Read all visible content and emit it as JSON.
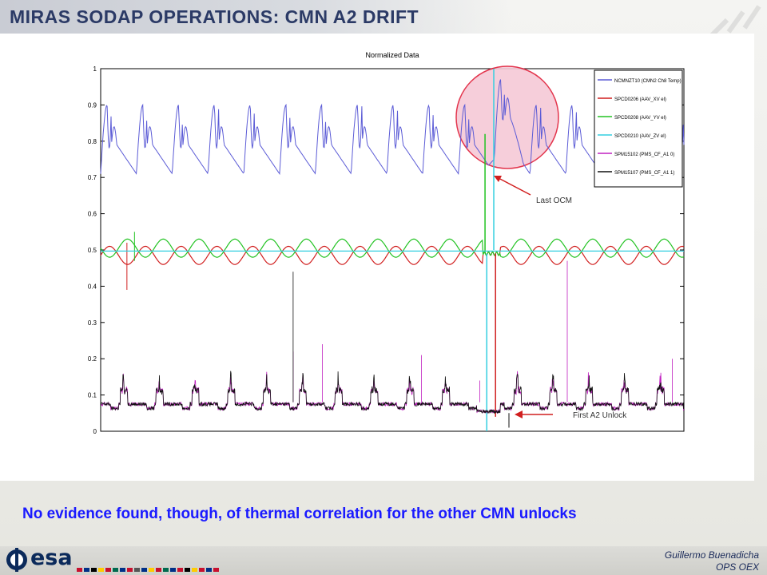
{
  "slide": {
    "title": "MIRAS SODAP OPERATIONS: CMN A2 DRIFT",
    "conclusion": "No evidence found, though, of thermal correlation for the other CMN unlocks",
    "footer": {
      "logo_text": "esa",
      "author": "Guillermo Buenadicha",
      "department": "OPS OEX"
    }
  },
  "chart_data": {
    "type": "line",
    "title": "Normalized Data",
    "xlabel": "",
    "ylabel": "",
    "ylim": [
      0,
      1
    ],
    "yticks": [
      "0",
      "0.1",
      "0.2",
      "0.3",
      "0.4",
      "0.5",
      "0.6",
      "0.7",
      "0.8",
      "0.9",
      "1"
    ],
    "grid": false,
    "legend_position": "top-right",
    "series": [
      {
        "name": "NCMNZT10 (CMN2 Ch8 Temp)",
        "color": "#5b5bd6",
        "approx_range": [
          0.71,
          0.99
        ],
        "cycles": 16
      },
      {
        "name": "SPCD0206 (AAV_XV el)",
        "color": "#d11f1f",
        "approx_range": [
          0.46,
          0.51
        ],
        "cycles": 16
      },
      {
        "name": "SPCD0208 (AAV_YV el)",
        "color": "#22c322",
        "approx_range": [
          0.48,
          0.53
        ],
        "cycles": 16
      },
      {
        "name": "SPCD0210 (AAV_ZV el)",
        "color": "#33cfe0",
        "approx_range": [
          0.49,
          0.5
        ],
        "cycles": 0
      },
      {
        "name": "SPM15102 (PMS_CF_A1 0)",
        "color": "#c020c0",
        "approx_range": [
          0.06,
          0.24
        ],
        "cycles": 16
      },
      {
        "name": "SPM15107 (PMS_CF_A1 1)",
        "color": "#111111",
        "approx_range": [
          0.06,
          0.23
        ],
        "cycles": 16
      }
    ],
    "legend_labels": [
      "NCMNZT10 (CMN2 Ch8 Temp)",
      "SPCD0206 (AAV_XV el)",
      "SPCD0208 (AAV_YV el)",
      "SPCD0210 (AAV_ZV el)",
      "SPM15102 (PMS_CF_A1 0)",
      "SPM15107 (PMS_CF_A1 1)"
    ],
    "annotations": [
      {
        "text": "Last OCM",
        "color": "#d11f1f"
      },
      {
        "text": "First A2 Unlock",
        "color": "#d11f1f"
      }
    ],
    "highlight": {
      "type": "circle",
      "fill": "#f6c9d6",
      "stroke": "#e0203a"
    }
  }
}
